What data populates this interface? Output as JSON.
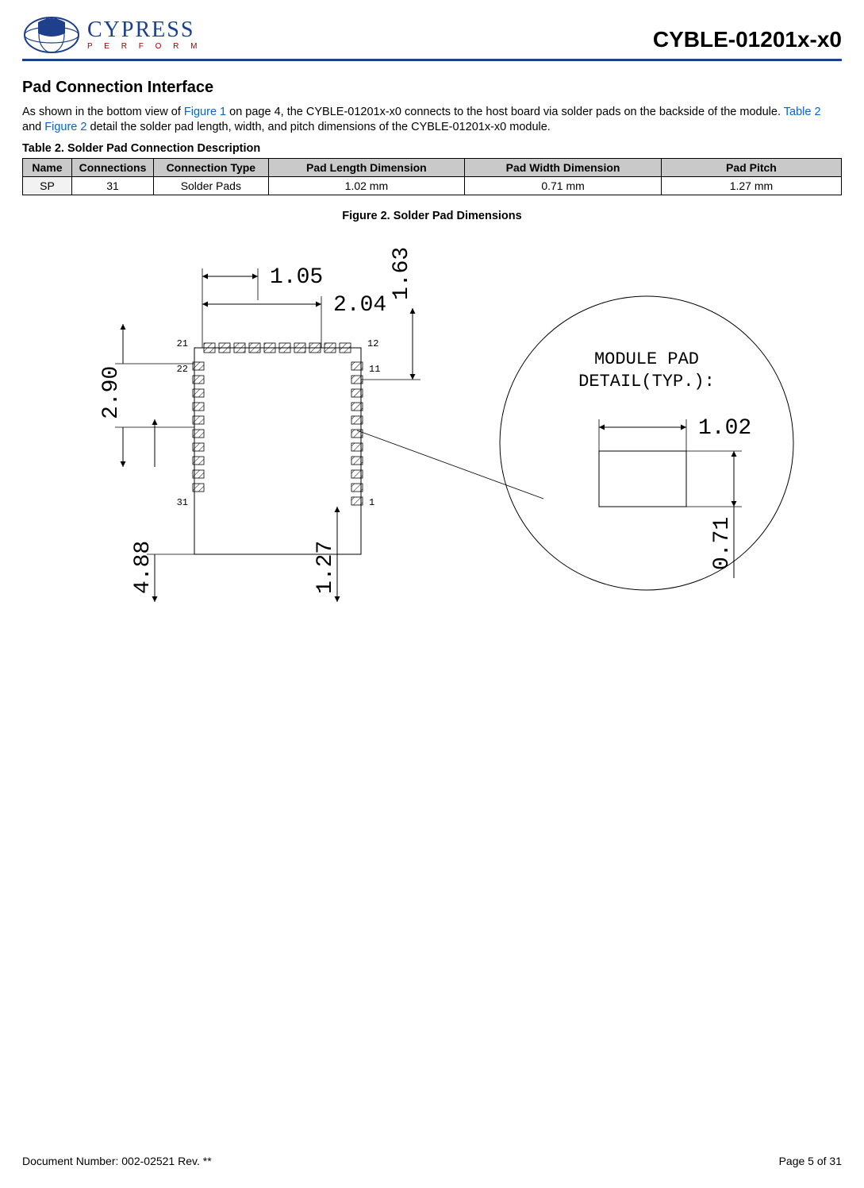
{
  "header": {
    "logo_name": "CYPRESS",
    "logo_sub": "P E R F O R M",
    "doc_code": "CYBLE-01201x-x0"
  },
  "section_title": "Pad Connection Interface",
  "intro": {
    "pre": "As shown in the bottom view of ",
    "link1": "Figure 1",
    "mid1": " on page 4, the CYBLE-01201x-x0 connects to the host board via solder pads on the backside of the module. ",
    "link2": "Table 2",
    "mid2": " and ",
    "link3": "Figure 2",
    "post": " detail the solder pad length, width, and pitch dimensions of the CYBLE-01201x-x0 module."
  },
  "table": {
    "caption": "Table 2.  Solder Pad Connection Description",
    "columns": [
      "Name",
      "Connections",
      "Connection Type",
      "Pad Length Dimension",
      "Pad Width Dimension",
      "Pad Pitch"
    ],
    "col_widths_pct": [
      6,
      10,
      14,
      24,
      24,
      22
    ],
    "rows": [
      {
        "cells": [
          "SP",
          "31",
          "Solder Pads",
          "1.02 mm",
          "0.71 mm",
          "1.27 mm"
        ],
        "shade_first": true
      }
    ]
  },
  "figure": {
    "caption": "Figure 2.  Solder Pad Dimensions",
    "dims": {
      "d_1_05": "1.05",
      "d_2_04": "2.04",
      "d_1_63": "1.63",
      "d_2_90": "2.90",
      "d_4_88": "4.88",
      "d_1_27": "1.27",
      "d_1_02": "1.02",
      "d_0_71": "0.71"
    },
    "pad_nums": {
      "n21": "21",
      "n12": "12",
      "n22": "22",
      "n11": "11",
      "n31": "31",
      "n1": "1"
    },
    "detail_label_1": "MODULE PAD",
    "detail_label_2": "DETAIL(TYP.):"
  },
  "footer": {
    "left": "Document Number: 002-02521 Rev. **",
    "right": "Page 5 of 31"
  },
  "colors": {
    "rule": "#1d3f8c",
    "link": "#0066cc",
    "header_bg": "#c9c9c9",
    "cell_bg": "#f2f2f2"
  }
}
